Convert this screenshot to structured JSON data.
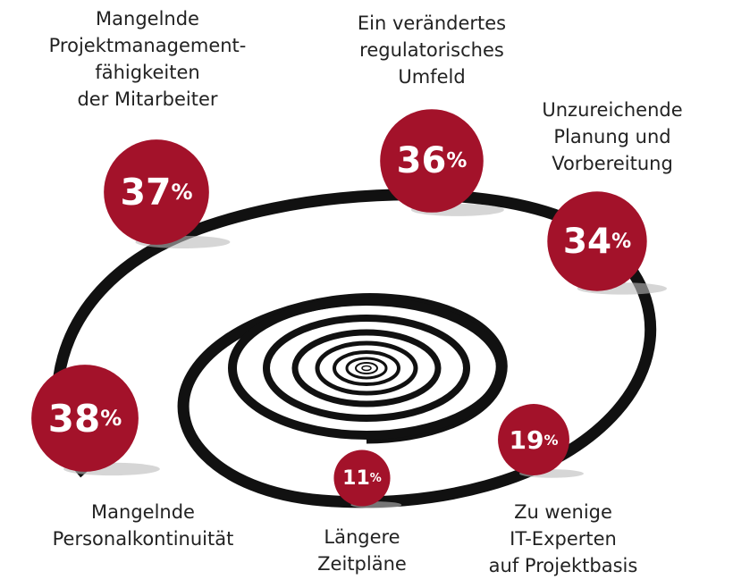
{
  "items": [
    {
      "label": [
        "Mangelnde",
        "Projektmanagement-",
        "fähigkeiten",
        "der Mitarbeiter"
      ],
      "value": 37,
      "unit": "%"
    },
    {
      "label": [
        "Ein verändertes",
        "regulatorisches",
        "Umfeld"
      ],
      "value": 36,
      "unit": "%"
    },
    {
      "label": [
        "Unzureichende",
        "Planung und",
        "Vorbereitung"
      ],
      "value": 34,
      "unit": "%"
    },
    {
      "label": [
        "Mangelnde",
        "Personalkontinuität"
      ],
      "value": 38,
      "unit": "%"
    },
    {
      "label": [
        "Längere",
        "Zeitpläne"
      ],
      "value": 11,
      "unit": "%"
    },
    {
      "label": [
        "Zu wenige",
        "IT-Experten",
        "auf Projektbasis"
      ],
      "value": 19,
      "unit": "%"
    }
  ]
}
